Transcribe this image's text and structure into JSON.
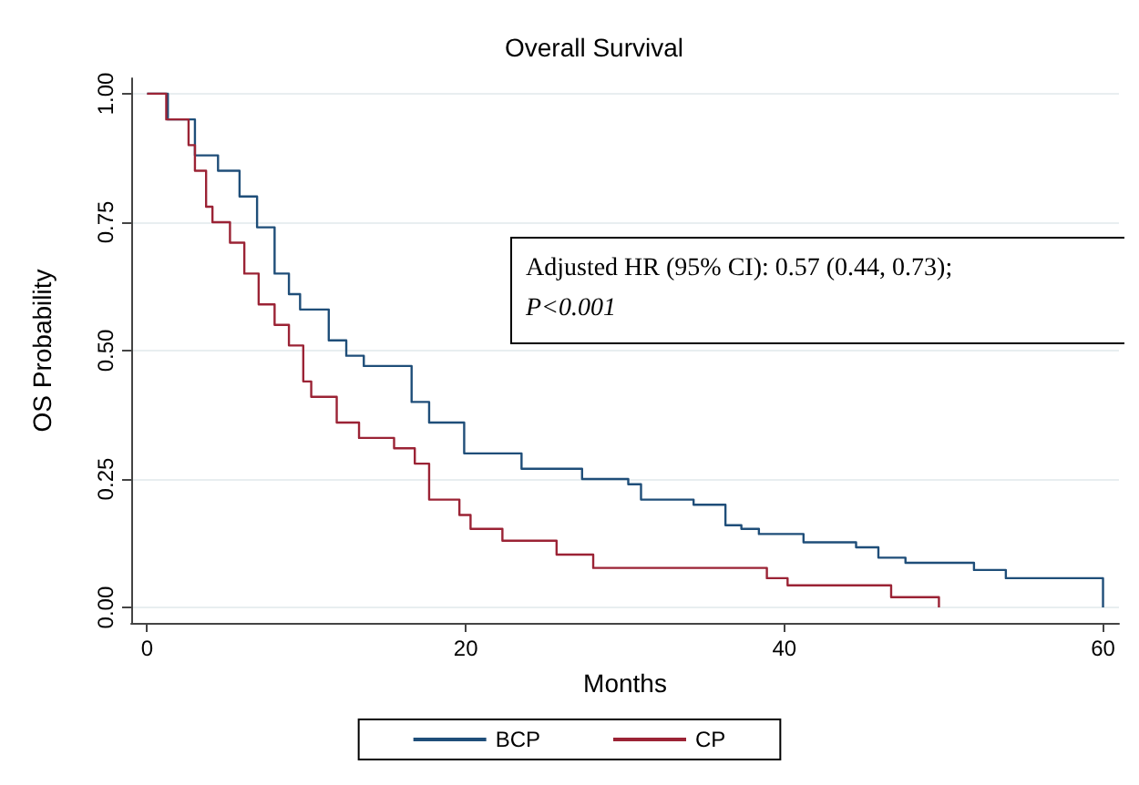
{
  "chart_data": {
    "type": "step",
    "title": "Overall Survival",
    "xlabel": "Months",
    "ylabel": "OS Probability",
    "xlim": [
      -1,
      61
    ],
    "xticks": [
      0,
      20,
      40,
      60
    ],
    "ylim": [
      -0.03,
      1.03
    ],
    "yticks": [
      {
        "value": 0,
        "label": "0.00"
      },
      {
        "value": 0.25,
        "label": "0.25"
      },
      {
        "value": 0.5,
        "label": "0.50"
      },
      {
        "value": 0.75,
        "label": "0.75"
      },
      {
        "value": 1,
        "label": "1.00"
      }
    ],
    "series": [
      {
        "name": "BCP",
        "color": "#1f4e79",
        "x": [
          0,
          1.3,
          3.0,
          4.45,
          5.8,
          6.9,
          8.0,
          8.9,
          9.6,
          11.4,
          12.5,
          13.6,
          16.6,
          17.7,
          19.9,
          23.5,
          27.3,
          30.2,
          31.0,
          34.3,
          36.3,
          37.3,
          38.4,
          41.2,
          44.5,
          45.9,
          47.6,
          51.9,
          53.9,
          60
        ],
        "values": [
          1,
          0.95,
          0.88,
          0.85,
          0.8,
          0.74,
          0.65,
          0.61,
          0.58,
          0.52,
          0.49,
          0.47,
          0.4,
          0.36,
          0.3,
          0.27,
          0.25,
          0.24,
          0.21,
          0.2,
          0.16,
          0.153,
          0.143,
          0.127,
          0.117,
          0.097,
          0.087,
          0.073,
          0.057,
          0
        ]
      },
      {
        "name": "CP",
        "color": "#9b2335",
        "x": [
          0,
          1.2,
          2.6,
          3.0,
          3.7,
          4.1,
          5.2,
          6.1,
          7.0,
          8.0,
          8.9,
          9.8,
          10.3,
          11.9,
          13.3,
          15.5,
          16.8,
          17.7,
          19.6,
          20.3,
          22.3,
          25.7,
          28.0,
          38.9,
          40.2,
          46.7,
          49.7
        ],
        "values": [
          1,
          0.95,
          0.9,
          0.85,
          0.78,
          0.75,
          0.71,
          0.65,
          0.59,
          0.55,
          0.51,
          0.44,
          0.41,
          0.36,
          0.33,
          0.31,
          0.28,
          0.21,
          0.18,
          0.153,
          0.13,
          0.103,
          0.077,
          0.057,
          0.043,
          0.02,
          0
        ]
      }
    ],
    "annotations": [
      "Adjusted HR (95% CI): 0.57 (0.44, 0.73);",
      "P<0.001"
    ],
    "grid": "y",
    "legend": "bottom",
    "marker": "none",
    "line_style": "solid"
  }
}
